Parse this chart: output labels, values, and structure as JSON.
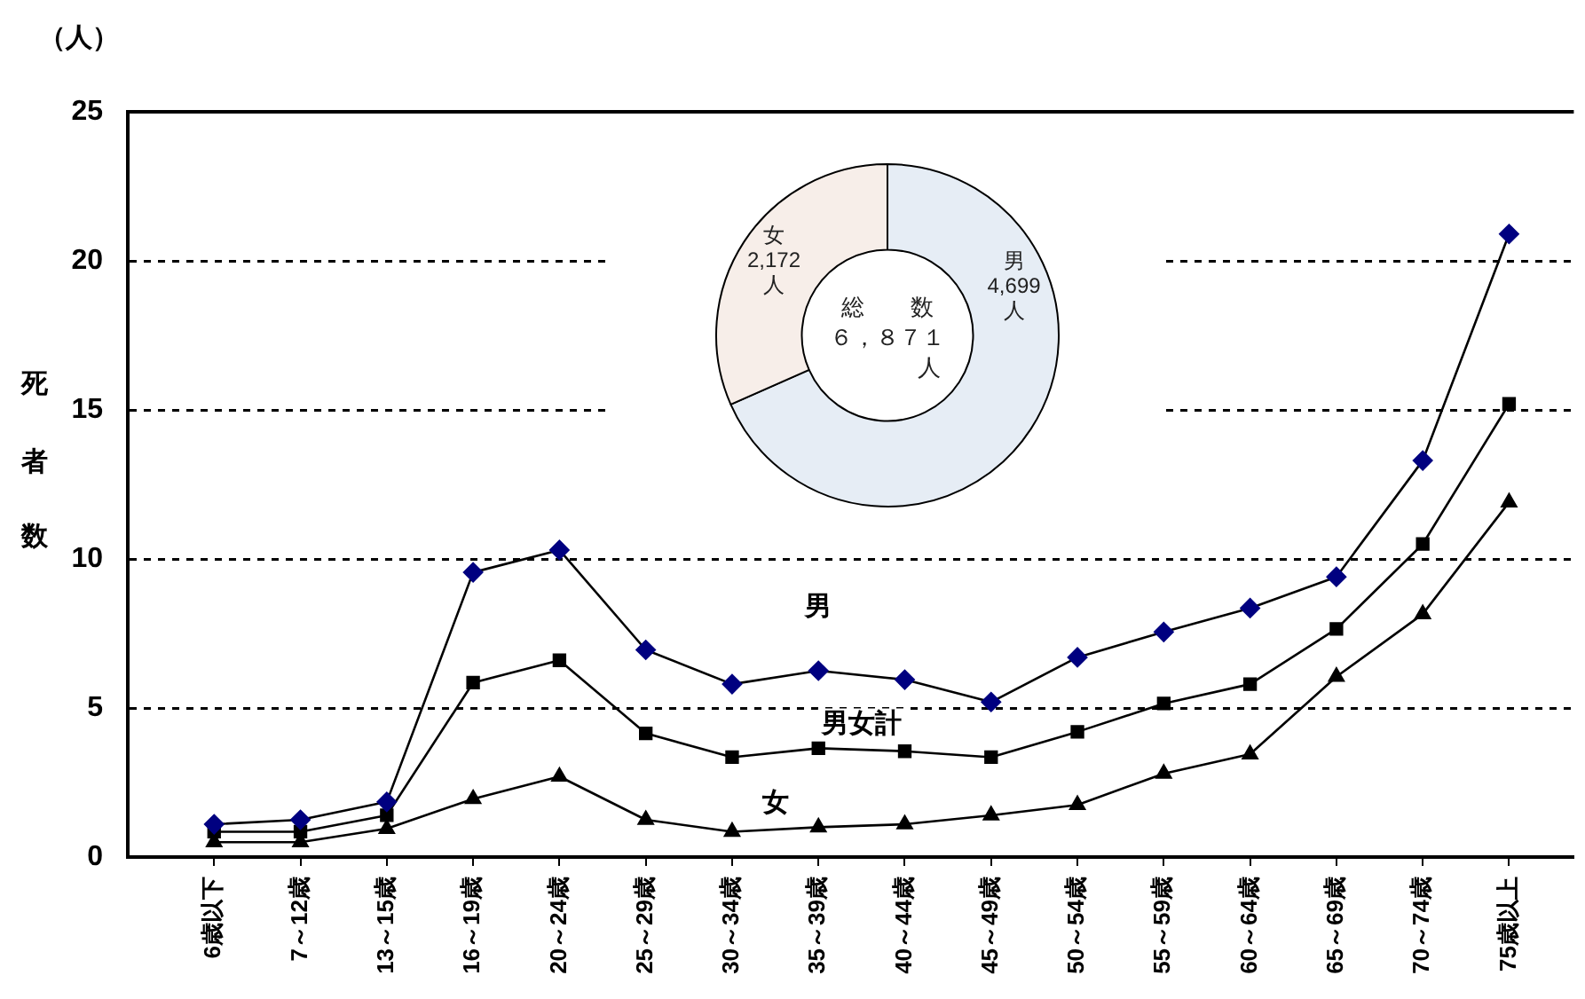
{
  "chart_data": [
    {
      "type": "line",
      "ylabel": "死者数",
      "annotations": [
        "（人）"
      ],
      "categories": [
        "6歳以下",
        "7～12歳",
        "13～15歳",
        "16～19歳",
        "20～24歳",
        "25～29歳",
        "30～34歳",
        "35～39歳",
        "40～44歳",
        "45～49歳",
        "50～54歳",
        "55～59歳",
        "60～64歳",
        "65～69歳",
        "70～74歳",
        "75歳以上"
      ],
      "series": [
        {
          "name": "男",
          "color": "#000080",
          "marker": "diamond",
          "values": [
            1.1,
            1.25,
            1.85,
            9.55,
            10.3,
            6.95,
            5.8,
            6.25,
            5.95,
            5.2,
            6.7,
            7.55,
            8.35,
            9.4,
            13.3,
            20.9
          ]
        },
        {
          "name": "男女計",
          "color": "#000000",
          "marker": "square",
          "values": [
            0.85,
            0.85,
            1.4,
            5.85,
            6.6,
            4.15,
            3.35,
            3.65,
            3.55,
            3.35,
            4.2,
            5.15,
            5.8,
            7.65,
            10.5,
            15.2
          ]
        },
        {
          "name": "女",
          "color": "#000000",
          "marker": "triangle",
          "values": [
            0.5,
            0.5,
            0.95,
            1.95,
            2.7,
            1.25,
            0.85,
            1.0,
            1.1,
            1.4,
            1.75,
            2.8,
            3.45,
            6.05,
            8.15,
            11.9
          ]
        }
      ],
      "ylim": [
        0,
        25
      ],
      "yticks": [
        0,
        5,
        10,
        15,
        20,
        25
      ],
      "grid": "y",
      "legend": false,
      "line_style": "solid"
    },
    {
      "type": "donut",
      "categories": [
        "男",
        "女"
      ],
      "values": [
        4699,
        2172
      ],
      "colors": [
        "#e6edf5",
        "#f7eee9"
      ],
      "value_labels": [
        "4,699\n人",
        "2,172\n人"
      ],
      "annotations": [
        "総　　数",
        "６，８７１",
        "人"
      ]
    }
  ]
}
